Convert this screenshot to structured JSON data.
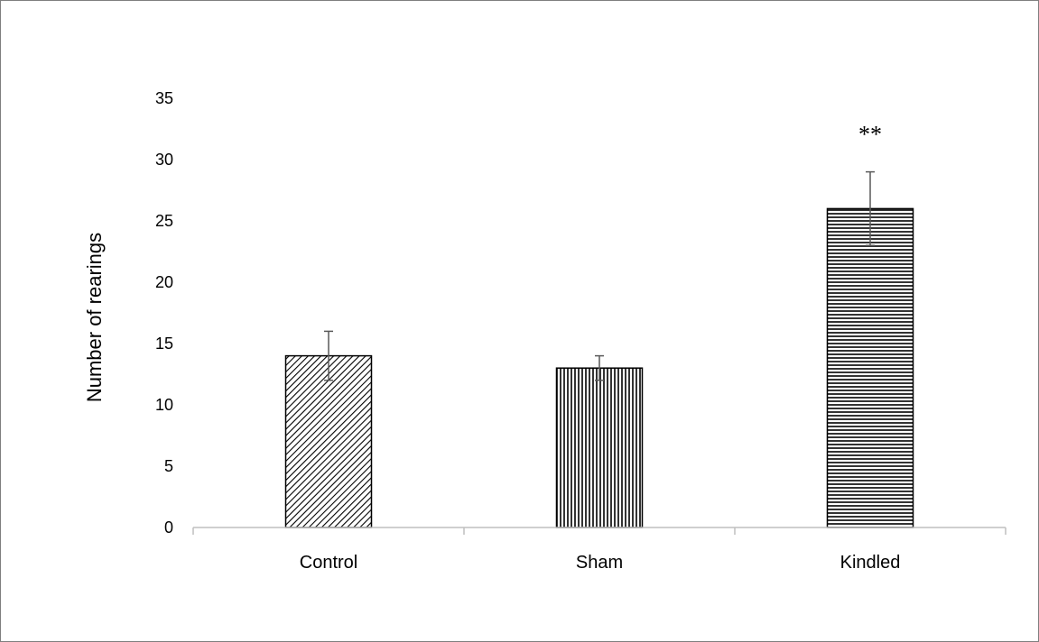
{
  "chart_data": {
    "type": "bar",
    "title": "",
    "xlabel": "",
    "ylabel": "Number of rearings",
    "ylim": [
      0,
      35
    ],
    "yticks": [
      0,
      5,
      10,
      15,
      20,
      25,
      30,
      35
    ],
    "grid": false,
    "categories": [
      "Control",
      "Sham",
      "Kindled"
    ],
    "values": [
      14,
      13,
      26
    ],
    "errors": [
      2,
      1,
      3
    ],
    "patterns": [
      "diagonal-hatch",
      "vertical-lines",
      "horizontal-lines"
    ],
    "annotations": [
      "",
      "",
      "**"
    ],
    "colors": {
      "bar_outline": "#000000",
      "pattern": "#000000",
      "axis": "#bfbfbf",
      "error_bar": "#595959"
    }
  }
}
